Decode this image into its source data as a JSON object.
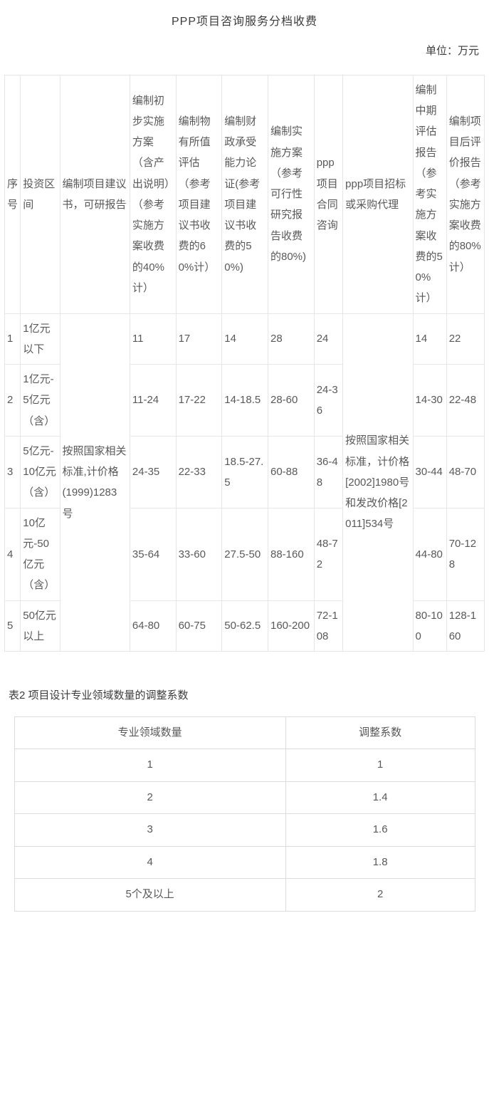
{
  "title": "PPP项目咨询服务分档收费",
  "unit_label": "单位：万元",
  "table1": {
    "col_widths_pct": [
      3.3,
      8.2,
      14.6,
      9.6,
      9.6,
      9.6,
      9.6,
      6.0,
      14.6,
      7.0,
      7.9
    ],
    "headers": [
      "序号",
      "投资区间",
      "编制项目建议书，可研报告",
      "编制初步实施方案（含产出说明）（参考实施方案收费的40%计）",
      "编制物有所值评估（参考项目建议书收费的60%计）",
      "编制财政承受能力论证(参考项目建议书收费的50%)",
      "编制实施方案（参考可行性研究报告收费的80%)",
      "ppp项目合同咨询",
      "ppp项目招标或采购代理",
      "编制中期评估报告（参考实施方案收费的50%计）",
      "编制项目后评价报告（参考实施方案收费的80%计）"
    ],
    "merged_col3": "按照国家相关标准,计价格(1999)1283号",
    "merged_col9": "按照国家相关标准，计价格[2002]1980号和发改价格[2011]534号",
    "rows": [
      {
        "n": "1",
        "range": "1亿元以下",
        "c4": "11",
        "c5": "17",
        "c6": "14",
        "c7": "28",
        "c8": "24",
        "c10": "14",
        "c11": "22"
      },
      {
        "n": "2",
        "range": "1亿元-5亿元（含）",
        "c4": "11-24",
        "c5": "17-22",
        "c6": "14-18.5",
        "c7": "28-60",
        "c8": "24-36",
        "c10": "14-30",
        "c11": "22-48"
      },
      {
        "n": "3",
        "range": "5亿元-10亿元（含）",
        "c4": "24-35",
        "c5": "22-33",
        "c6": "18.5-27.5",
        "c7": "60-88",
        "c8": "36-48",
        "c10": "30-44",
        "c11": "48-70"
      },
      {
        "n": "4",
        "range": "10亿元-50亿元（含）",
        "c4": "35-64",
        "c5": "33-60",
        "c6": "27.5-50",
        "c7": "88-160",
        "c8": "48-72",
        "c10": "44-80",
        "c11": "70-128"
      },
      {
        "n": "5",
        "range": "50亿元以上",
        "c4": "64-80",
        "c5": "60-75",
        "c6": "50-62.5",
        "c7": "160-200",
        "c8": "72-108",
        "c10": "80-100",
        "c11": "128-160"
      }
    ]
  },
  "table2": {
    "caption": "表2 项目设计专业领域数量的调整系数",
    "headers": [
      "专业领域数量",
      "调整系数"
    ],
    "rows": [
      [
        "1",
        "1"
      ],
      [
        "2",
        "1.4"
      ],
      [
        "3",
        "1.6"
      ],
      [
        "4",
        "1.8"
      ],
      [
        "5个及以上",
        "2"
      ]
    ]
  }
}
